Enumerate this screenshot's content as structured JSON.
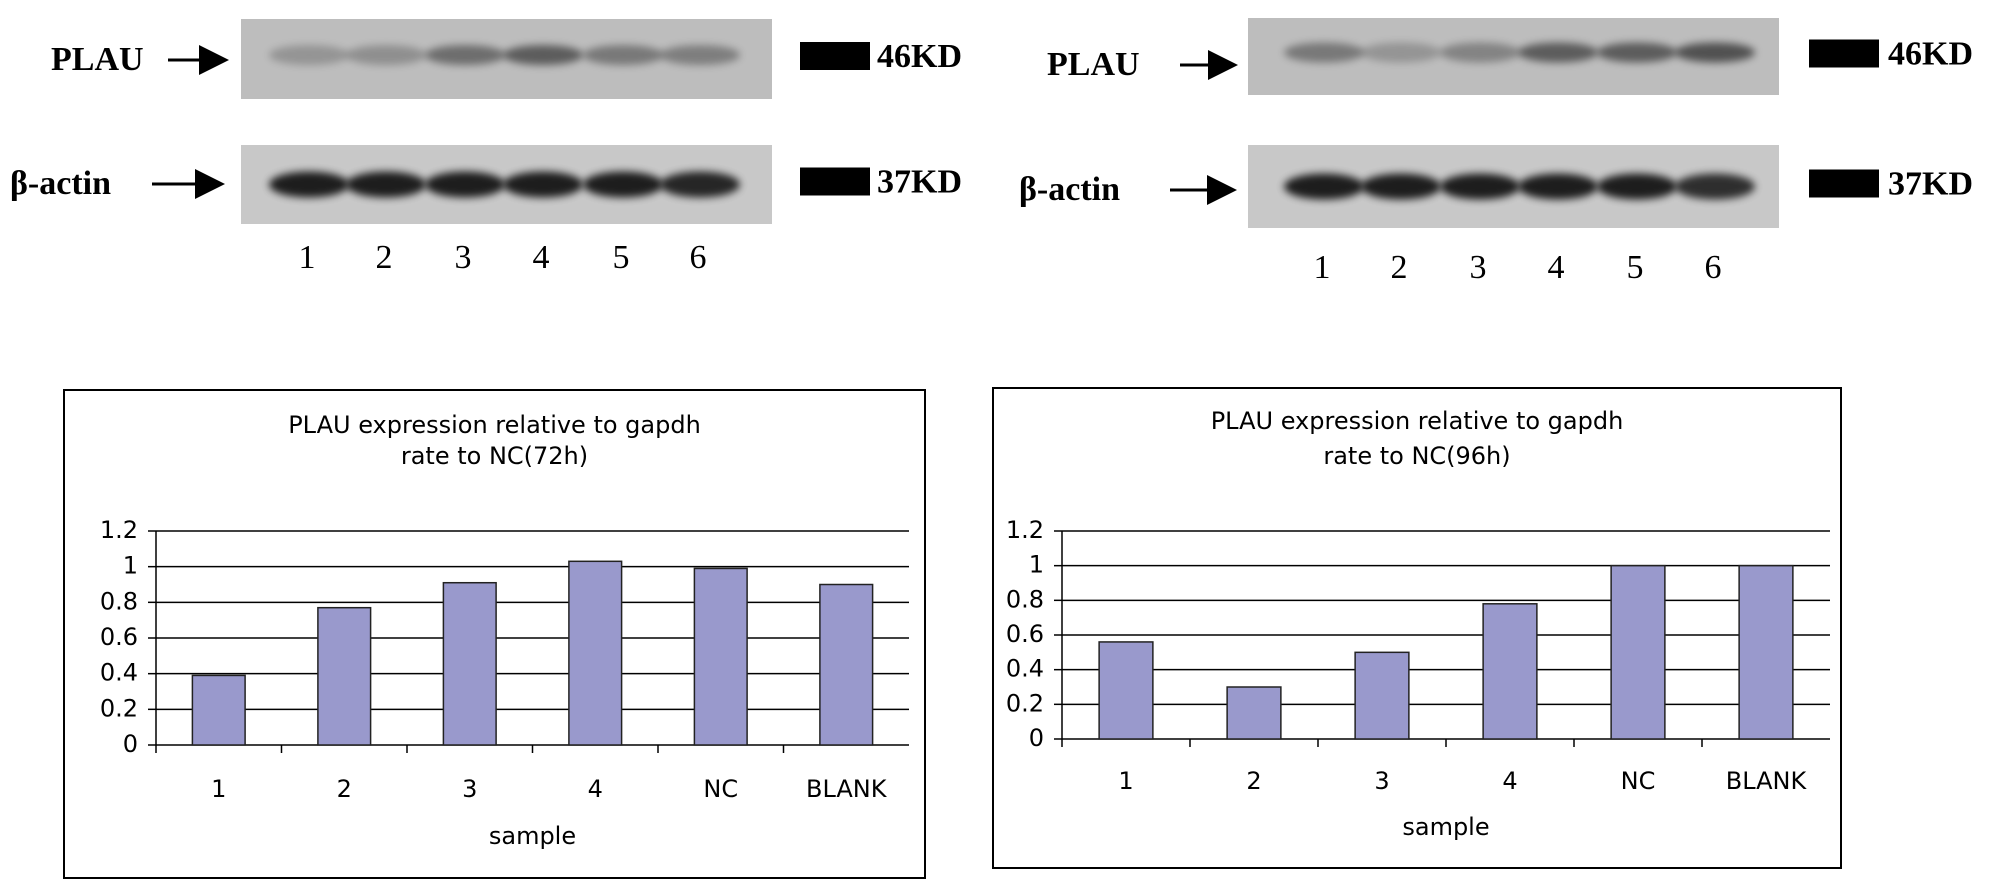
{
  "blots": [
    {
      "rows": [
        {
          "label": "PLAU",
          "size": "46KD"
        },
        {
          "label": "β-actin",
          "size": "37KD"
        }
      ],
      "lanes": [
        "1",
        "2",
        "3",
        "4",
        "5",
        "6"
      ]
    },
    {
      "rows": [
        {
          "label": "PLAU",
          "size": "46KD"
        },
        {
          "label": "β-actin",
          "size": "37KD"
        }
      ],
      "lanes": [
        "1",
        "2",
        "3",
        "4",
        "5",
        "6"
      ]
    }
  ],
  "chart_data": [
    {
      "type": "bar",
      "title": "PLAU expression relative to gapdh",
      "subtitle": "rate to NC(72h)",
      "x_label": "sample",
      "categories": [
        "1",
        "2",
        "3",
        "4",
        "NC",
        "BLANK"
      ],
      "values": [
        0.39,
        0.77,
        0.91,
        1.03,
        0.99,
        0.9
      ],
      "color": "#9999cc",
      "ylim": [
        0,
        1.2
      ],
      "yticks": [
        0,
        0.2,
        0.4,
        0.6,
        0.8,
        1,
        1.2
      ],
      "grid": true
    },
    {
      "type": "bar",
      "title": "PLAU expression relative to gapdh",
      "subtitle": "rate to NC(96h)",
      "x_label": "sample",
      "categories": [
        "1",
        "2",
        "3",
        "4",
        "NC",
        "BLANK"
      ],
      "values": [
        0.56,
        0.3,
        0.5,
        0.78,
        1,
        1
      ],
      "color": "#9999cc",
      "ylim": [
        0,
        1.2
      ],
      "yticks": [
        0,
        0.2,
        0.4,
        0.6,
        0.8,
        1,
        1.2
      ],
      "grid": true
    }
  ]
}
